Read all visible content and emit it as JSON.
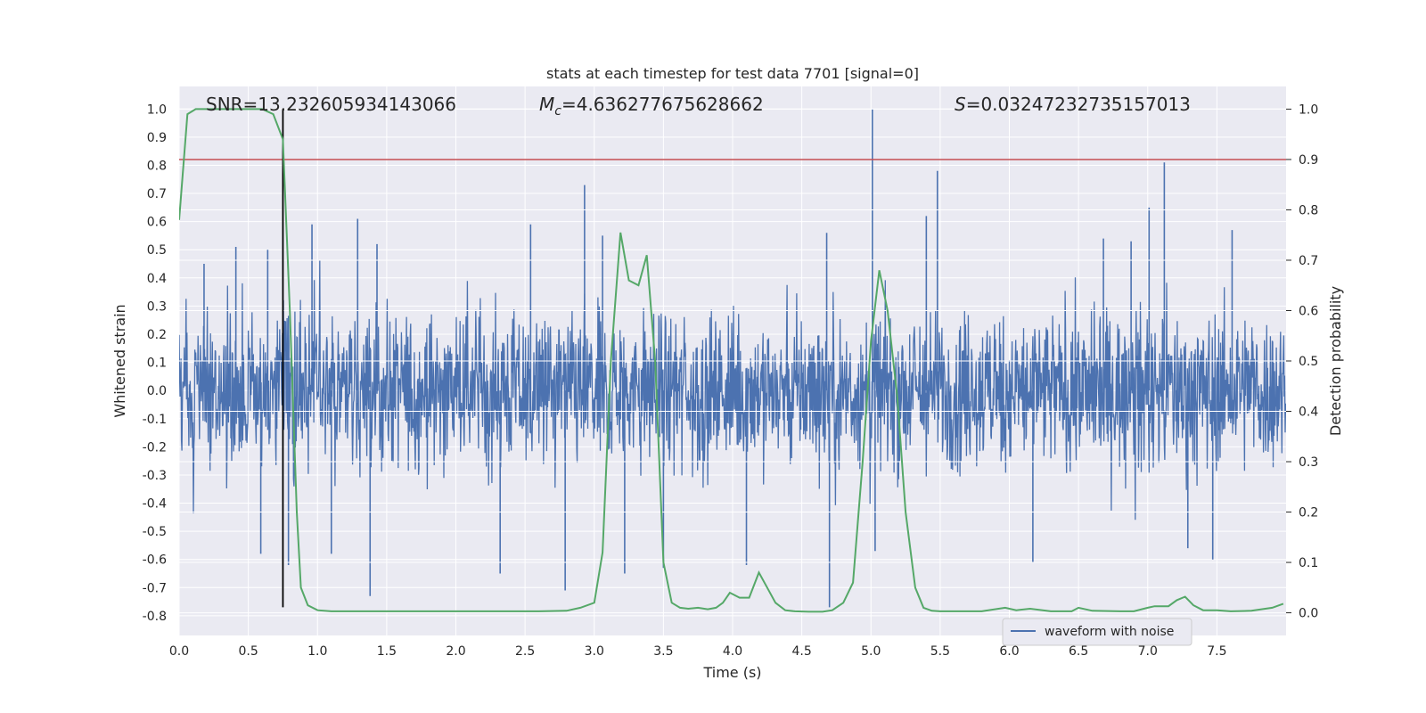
{
  "chart_data": {
    "type": "line",
    "title": "stats at each timestep for test data 7701 [signal=0]",
    "xlabel": "Time (s)",
    "ylabel": "Whitened strain",
    "y2label": "Detection probability",
    "xlim": [
      0,
      8
    ],
    "ylim": [
      -0.87,
      1.08
    ],
    "y2lim": [
      -0.045,
      1.045
    ],
    "xticks": [
      "0.0",
      "0.5",
      "1.0",
      "1.5",
      "2.0",
      "2.5",
      "3.0",
      "3.5",
      "4.0",
      "4.5",
      "5.0",
      "5.5",
      "6.0",
      "6.5",
      "7.0",
      "7.5"
    ],
    "xtick_values": [
      0,
      0.5,
      1,
      1.5,
      2,
      2.5,
      3,
      3.5,
      4,
      4.5,
      5,
      5.5,
      6,
      6.5,
      7,
      7.5
    ],
    "yticks": [
      "-0.8",
      "-0.7",
      "-0.6",
      "-0.5",
      "-0.4",
      "-0.3",
      "-0.2",
      "-0.1",
      "0.0",
      "0.1",
      "0.2",
      "0.3",
      "0.4",
      "0.5",
      "0.6",
      "0.7",
      "0.8",
      "0.9",
      "1.0"
    ],
    "ytick_values": [
      -0.8,
      -0.7,
      -0.6,
      -0.5,
      -0.4,
      -0.3,
      -0.2,
      -0.1,
      0,
      0.1,
      0.2,
      0.3,
      0.4,
      0.5,
      0.6,
      0.7,
      0.8,
      0.9,
      1.0
    ],
    "y2ticks": [
      "0.0",
      "0.1",
      "0.2",
      "0.3",
      "0.4",
      "0.5",
      "0.6",
      "0.7",
      "0.8",
      "0.9",
      "1.0"
    ],
    "y2tick_values": [
      0,
      0.1,
      0.2,
      0.3,
      0.4,
      0.5,
      0.6,
      0.7,
      0.8,
      0.9,
      1.0
    ],
    "grid": true,
    "legend": {
      "position": "lower-right",
      "entries": [
        "waveform with noise"
      ]
    },
    "annotations": {
      "snr": "SNR=13.232605934143066",
      "mc_symbol": "M",
      "mc_sub": "c",
      "mc_value": "=4.636277675628662",
      "s_symbol": "S",
      "s_value": "=0.03247232735157013"
    },
    "threshold": {
      "axis": "right",
      "value": 0.9,
      "color": "#c44e52"
    },
    "marker_line": {
      "x": 0.75,
      "y_from": -0.77,
      "y_to": 1.0,
      "color": "#000000"
    },
    "series": [
      {
        "name": "waveform with noise",
        "color": "#4c72b0",
        "axis": "left",
        "description_values": {
          "time_start": 0,
          "time_end": 8,
          "typical_amplitude": 0.3,
          "spikes": [
            [
              0.18,
              0.45
            ],
            [
              0.41,
              0.51
            ],
            [
              0.59,
              -0.58
            ],
            [
              0.64,
              0.5
            ],
            [
              0.79,
              -0.62
            ],
            [
              0.96,
              0.59
            ],
            [
              1.1,
              -0.58
            ],
            [
              1.29,
              0.61
            ],
            [
              1.38,
              -0.73
            ],
            [
              1.43,
              0.52
            ],
            [
              2.32,
              -0.65
            ],
            [
              2.54,
              0.59
            ],
            [
              2.79,
              -0.71
            ],
            [
              2.93,
              0.73
            ],
            [
              3.06,
              0.55
            ],
            [
              3.22,
              -0.65
            ],
            [
              3.5,
              -0.63
            ],
            [
              4.1,
              -0.62
            ],
            [
              4.68,
              0.56
            ],
            [
              4.7,
              -0.77
            ],
            [
              5.01,
              1.0
            ],
            [
              5.03,
              -0.57
            ],
            [
              5.4,
              0.62
            ],
            [
              5.48,
              0.78
            ],
            [
              6.17,
              -0.61
            ],
            [
              6.68,
              0.54
            ],
            [
              6.88,
              0.53
            ],
            [
              7.01,
              0.65
            ],
            [
              7.12,
              0.81
            ],
            [
              7.29,
              -0.56
            ],
            [
              7.47,
              -0.6
            ],
            [
              7.61,
              0.57
            ]
          ]
        }
      },
      {
        "name": "",
        "color": "#55a868",
        "axis": "right",
        "x": [
          0,
          0.06,
          0.12,
          0.2,
          0.3,
          0.4,
          0.5,
          0.55,
          0.6,
          0.68,
          0.75,
          0.8,
          0.85,
          0.88,
          0.93,
          1.0,
          1.1,
          1.2,
          1.4,
          1.6,
          1.8,
          2.0,
          2.2,
          2.4,
          2.6,
          2.8,
          2.9,
          3.0,
          3.06,
          3.12,
          3.19,
          3.25,
          3.32,
          3.38,
          3.44,
          3.5,
          3.56,
          3.62,
          3.68,
          3.75,
          3.82,
          3.88,
          3.93,
          3.98,
          4.05,
          4.12,
          4.19,
          4.25,
          4.31,
          4.38,
          4.45,
          4.55,
          4.65,
          4.72,
          4.8,
          4.87,
          4.94,
          5.0,
          5.06,
          5.12,
          5.19,
          5.25,
          5.32,
          5.38,
          5.44,
          5.5,
          5.6,
          5.8,
          5.97,
          6.05,
          6.15,
          6.3,
          6.45,
          6.5,
          6.6,
          6.8,
          6.9,
          7.0,
          7.05,
          7.15,
          7.21,
          7.27,
          7.33,
          7.4,
          7.5,
          7.6,
          7.75,
          7.9,
          7.98
        ],
        "y": [
          0.78,
          0.99,
          1.0,
          1.0,
          1.0,
          1.0,
          1.0,
          1.0,
          1.0,
          0.99,
          0.94,
          0.6,
          0.2,
          0.05,
          0.015,
          0.005,
          0.003,
          0.003,
          0.003,
          0.003,
          0.003,
          0.003,
          0.003,
          0.003,
          0.003,
          0.004,
          0.01,
          0.02,
          0.12,
          0.5,
          0.755,
          0.66,
          0.65,
          0.71,
          0.5,
          0.1,
          0.02,
          0.01,
          0.008,
          0.01,
          0.007,
          0.01,
          0.02,
          0.04,
          0.03,
          0.03,
          0.08,
          0.05,
          0.02,
          0.005,
          0.003,
          0.002,
          0.002,
          0.005,
          0.02,
          0.06,
          0.3,
          0.54,
          0.68,
          0.6,
          0.43,
          0.2,
          0.05,
          0.01,
          0.004,
          0.003,
          0.003,
          0.003,
          0.01,
          0.005,
          0.008,
          0.003,
          0.003,
          0.01,
          0.004,
          0.003,
          0.003,
          0.01,
          0.013,
          0.013,
          0.025,
          0.032,
          0.015,
          0.005,
          0.005,
          0.003,
          0.004,
          0.01,
          0.018
        ]
      }
    ]
  }
}
